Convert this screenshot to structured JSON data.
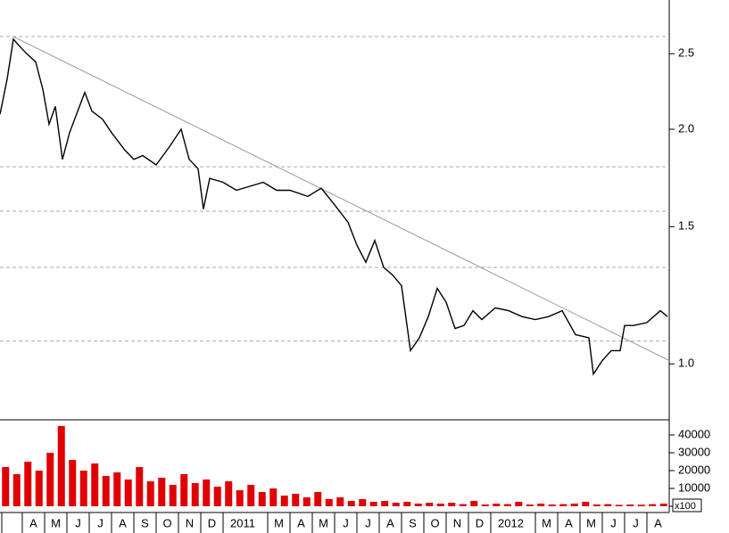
{
  "chart_data": [
    {
      "type": "line",
      "scale": "log",
      "color": "#000000",
      "x": [
        0,
        0.32,
        0.6,
        0.8,
        1.2,
        1.6,
        1.92,
        2.2,
        2.48,
        2.8,
        3.12,
        3.4,
        3.8,
        4.12,
        4.6,
        5,
        5.6,
        6,
        6.4,
        7,
        7.6,
        8.12,
        8.48,
        8.88,
        9.12,
        9.4,
        10,
        10.6,
        11.2,
        11.8,
        12.4,
        13,
        13.8,
        14.4,
        15,
        15.6,
        16,
        16.4,
        16.8,
        17.2,
        17.6,
        18,
        18.4,
        18.8,
        19.2,
        19.6,
        20,
        20.4,
        20.8,
        21.2,
        21.6,
        22.2,
        22.8,
        23.4,
        24,
        24.6,
        25.2,
        25.8,
        26.4,
        26.6,
        27,
        27.4,
        27.8,
        28,
        28.4,
        29,
        29.6,
        29.92
      ],
      "values": [
        2.09,
        2.32,
        2.61,
        2.57,
        2.5,
        2.44,
        2.25,
        2.03,
        2.14,
        1.83,
        1.98,
        2.08,
        2.23,
        2.11,
        2.06,
        1.98,
        1.88,
        1.83,
        1.85,
        1.8,
        1.9,
        2.0,
        1.83,
        1.78,
        1.58,
        1.73,
        1.71,
        1.67,
        1.69,
        1.71,
        1.67,
        1.67,
        1.64,
        1.68,
        1.6,
        1.52,
        1.42,
        1.35,
        1.44,
        1.33,
        1.3,
        1.26,
        1.04,
        1.08,
        1.15,
        1.25,
        1.2,
        1.11,
        1.12,
        1.17,
        1.14,
        1.18,
        1.17,
        1.15,
        1.14,
        1.15,
        1.17,
        1.09,
        1.08,
        0.97,
        1.01,
        1.04,
        1.04,
        1.12,
        1.12,
        1.13,
        1.17,
        1.15
      ],
      "reference_lines": [
        2.63,
        1.79,
        1.57,
        1.33,
        1.07
      ],
      "trendline": {
        "x": [
          0.6,
          30
        ],
        "values": [
          2.63,
          1.01
        ]
      },
      "xlim": [
        0,
        30
      ],
      "ylim": [
        0.85,
        2.93
      ],
      "yticks": [
        {
          "value": 1,
          "label": "1.0"
        },
        {
          "value": 1.5,
          "label": "1.5"
        },
        {
          "value": 2,
          "label": "2.0"
        },
        {
          "value": 2.5,
          "label": "2.5"
        }
      ]
    },
    {
      "type": "bar",
      "color": "#e00000",
      "unit_label": "x100",
      "x": [
        0.25,
        0.75,
        1.25,
        1.75,
        2.25,
        2.75,
        3.25,
        3.75,
        4.25,
        4.75,
        5.25,
        5.75,
        6.25,
        6.75,
        7.25,
        7.75,
        8.25,
        8.75,
        9.25,
        9.75,
        10.25,
        10.75,
        11.25,
        11.75,
        12.25,
        12.75,
        13.25,
        13.75,
        14.25,
        14.75,
        15.25,
        15.75,
        16.25,
        16.75,
        17.25,
        17.75,
        18.25,
        18.75,
        19.25,
        19.75,
        20.25,
        20.75,
        21.25,
        21.75,
        22.25,
        22.75,
        23.25,
        23.75,
        24.25,
        24.75,
        25.25,
        25.75,
        26.25,
        26.75,
        27.25,
        27.75,
        28.25,
        28.75,
        29.25,
        29.75
      ],
      "values": [
        22000,
        18000,
        25000,
        20000,
        30000,
        45000,
        26000,
        20000,
        24000,
        17000,
        19000,
        15000,
        22000,
        14000,
        16000,
        12000,
        18000,
        13000,
        15000,
        11000,
        14000,
        9000,
        12000,
        8000,
        10000,
        6000,
        7000,
        5000,
        8000,
        4000,
        5000,
        3000,
        4000,
        2500,
        3000,
        2000,
        2500,
        1500,
        2000,
        1500,
        2000,
        1200,
        3000,
        1000,
        1500,
        1200,
        2500,
        1000,
        1500,
        1000,
        1200,
        1500,
        2500,
        1000,
        1200,
        800,
        1000,
        900,
        1200,
        1500
      ],
      "xlim": [
        0,
        30
      ],
      "ylim": [
        0,
        48000
      ],
      "yticks": [
        0,
        10000,
        20000,
        30000,
        40000
      ],
      "xticks": [
        {
          "value": 1,
          "label": "A"
        },
        {
          "value": 2,
          "label": "M"
        },
        {
          "value": 3,
          "label": "J"
        },
        {
          "value": 4,
          "label": "J"
        },
        {
          "value": 5,
          "label": "A"
        },
        {
          "value": 6,
          "label": "S"
        },
        {
          "value": 7,
          "label": "O"
        },
        {
          "value": 8,
          "label": "N"
        },
        {
          "value": 9,
          "label": "D"
        },
        {
          "value": 10,
          "label": "2011"
        },
        {
          "value": 12,
          "label": "M"
        },
        {
          "value": 13,
          "label": "A"
        },
        {
          "value": 14,
          "label": "M"
        },
        {
          "value": 15,
          "label": "J"
        },
        {
          "value": 16,
          "label": "J"
        },
        {
          "value": 17,
          "label": "A"
        },
        {
          "value": 18,
          "label": "S"
        },
        {
          "value": 19,
          "label": "O"
        },
        {
          "value": 20,
          "label": "N"
        },
        {
          "value": 21,
          "label": "D"
        },
        {
          "value": 22,
          "label": "2012"
        },
        {
          "value": 24,
          "label": "M"
        },
        {
          "value": 25,
          "label": "A"
        },
        {
          "value": 26,
          "label": "M"
        },
        {
          "value": 27,
          "label": "J"
        },
        {
          "value": 28,
          "label": "J"
        },
        {
          "value": 29,
          "label": "A"
        }
      ]
    }
  ]
}
